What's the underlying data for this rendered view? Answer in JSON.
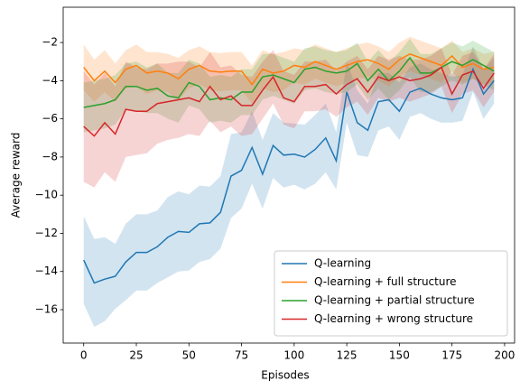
{
  "chart_data": {
    "type": "line",
    "xlabel": "Episodes",
    "ylabel": "Average reward",
    "x": [
      0,
      5,
      10,
      15,
      20,
      25,
      30,
      35,
      40,
      45,
      50,
      55,
      60,
      65,
      70,
      75,
      80,
      85,
      90,
      95,
      100,
      105,
      110,
      115,
      120,
      125,
      130,
      135,
      140,
      145,
      150,
      155,
      160,
      165,
      170,
      175,
      180,
      185,
      190,
      195
    ],
    "series": [
      {
        "name": "Q-learning",
        "color": "#1f77b4",
        "values": [
          -13.4,
          -14.6,
          -14.4,
          -14.25,
          -13.5,
          -13.0,
          -13.0,
          -12.7,
          -12.2,
          -11.9,
          -11.95,
          -11.5,
          -11.45,
          -10.9,
          -9.0,
          -8.7,
          -7.5,
          -8.9,
          -7.4,
          -7.9,
          -7.85,
          -8.0,
          -7.6,
          -7.0,
          -8.2,
          -4.6,
          -6.2,
          -6.6,
          -5.1,
          -5.0,
          -5.6,
          -4.6,
          -4.4,
          -4.7,
          -4.9,
          -5.0,
          -4.9,
          -3.4,
          -4.7,
          -4.0
        ],
        "errors": [
          2.3,
          2.3,
          2.2,
          1.7,
          2.0,
          2.0,
          2.0,
          1.9,
          2.1,
          2.1,
          2.0,
          2.0,
          1.9,
          1.9,
          2.2,
          2.0,
          1.9,
          1.8,
          1.7,
          1.7,
          1.6,
          1.7,
          1.8,
          1.8,
          1.5,
          1.6,
          1.7,
          1.4,
          1.5,
          1.4,
          1.5,
          1.3,
          1.3,
          1.3,
          1.3,
          1.2,
          1.2,
          1.2,
          1.3,
          1.2
        ]
      },
      {
        "name": "Q-learning + full structure",
        "color": "#ff7f0e",
        "values": [
          -3.3,
          -4.0,
          -3.5,
          -4.1,
          -3.4,
          -3.2,
          -3.6,
          -3.5,
          -3.6,
          -3.9,
          -3.4,
          -3.2,
          -3.5,
          -3.55,
          -3.5,
          -3.5,
          -4.2,
          -3.4,
          -3.6,
          -3.5,
          -3.2,
          -3.3,
          -3.0,
          -3.2,
          -3.4,
          -3.2,
          -3.0,
          -2.9,
          -3.1,
          -3.4,
          -2.9,
          -2.6,
          -2.8,
          -3.0,
          -3.2,
          -2.7,
          -3.3,
          -3.1,
          -3.4,
          -3.3
        ],
        "errors": [
          1.2,
          1.1,
          1.1,
          1.0,
          1.0,
          1.1,
          1.1,
          1.0,
          1.0,
          1.1,
          1.0,
          1.0,
          1.0,
          1.0,
          1.0,
          1.0,
          1.0,
          1.0,
          1.0,
          1.0,
          0.9,
          0.9,
          0.9,
          0.9,
          0.9,
          0.9,
          0.9,
          0.9,
          0.9,
          0.9,
          0.9,
          0.9,
          0.9,
          0.9,
          0.9,
          0.8,
          0.8,
          0.8,
          0.8,
          0.8
        ]
      },
      {
        "name": "Q-learning + partial structure",
        "color": "#2ca02c",
        "values": [
          -5.4,
          -5.3,
          -5.2,
          -5.0,
          -4.3,
          -4.3,
          -4.5,
          -4.4,
          -4.8,
          -4.9,
          -4.1,
          -4.3,
          -5.0,
          -4.9,
          -5.0,
          -4.6,
          -4.6,
          -3.8,
          -3.7,
          -3.9,
          -4.1,
          -3.4,
          -3.3,
          -3.5,
          -3.6,
          -3.5,
          -3.1,
          -4.0,
          -3.4,
          -4.0,
          -3.5,
          -2.8,
          -3.6,
          -3.6,
          -3.3,
          -3.0,
          -3.2,
          -2.9,
          -3.2,
          -3.5
        ],
        "errors": [
          1.3,
          1.3,
          1.3,
          1.3,
          1.2,
          1.3,
          1.2,
          1.3,
          1.2,
          1.3,
          1.2,
          1.2,
          1.2,
          1.2,
          1.2,
          1.2,
          1.2,
          1.2,
          1.1,
          1.1,
          1.1,
          1.1,
          1.1,
          1.1,
          1.1,
          1.1,
          1.1,
          1.0,
          1.0,
          1.0,
          1.0,
          1.0,
          1.0,
          1.0,
          1.0,
          1.0,
          1.0,
          1.0,
          1.0,
          1.0
        ]
      },
      {
        "name": "Q-learning + wrong structure",
        "color": "#d62728",
        "values": [
          -6.4,
          -6.9,
          -6.2,
          -6.8,
          -5.5,
          -5.6,
          -5.6,
          -5.2,
          -5.1,
          -5.0,
          -4.9,
          -5.1,
          -4.3,
          -5.0,
          -4.8,
          -5.3,
          -5.3,
          -4.5,
          -3.8,
          -4.9,
          -5.1,
          -4.3,
          -4.3,
          -4.2,
          -4.7,
          -4.2,
          -3.9,
          -4.6,
          -3.8,
          -4.0,
          -3.8,
          -4.0,
          -3.9,
          -3.7,
          -3.3,
          -4.7,
          -3.7,
          -3.5,
          -4.4,
          -3.6
        ],
        "errors": [
          2.9,
          2.7,
          2.6,
          2.5,
          2.5,
          2.3,
          2.2,
          2.1,
          2.0,
          2.0,
          1.9,
          1.8,
          1.8,
          1.7,
          1.6,
          1.6,
          1.5,
          1.5,
          1.4,
          1.4,
          1.4,
          1.3,
          1.3,
          1.3,
          1.2,
          1.2,
          1.2,
          1.2,
          1.1,
          1.1,
          1.1,
          1.1,
          1.0,
          1.0,
          1.0,
          1.0,
          1.0,
          1.0,
          1.0,
          1.0
        ]
      }
    ],
    "xlim": [
      -9.75,
      204.75
    ],
    "xticks": [
      0,
      25,
      50,
      75,
      100,
      125,
      150,
      175,
      200
    ],
    "ylim": [
      -17.75,
      -0.15
    ],
    "yticks": [
      {
        "value": -16,
        "label": "−16"
      },
      {
        "value": -14,
        "label": "−14"
      },
      {
        "value": -12,
        "label": "−12"
      },
      {
        "value": -10,
        "label": "−10"
      },
      {
        "value": -8,
        "label": "−8"
      },
      {
        "value": -6,
        "label": "−6"
      },
      {
        "value": -4,
        "label": "−4"
      },
      {
        "value": -2,
        "label": "−2"
      }
    ],
    "grid": false,
    "legend": "lower right",
    "band_opacity": 0.2
  }
}
